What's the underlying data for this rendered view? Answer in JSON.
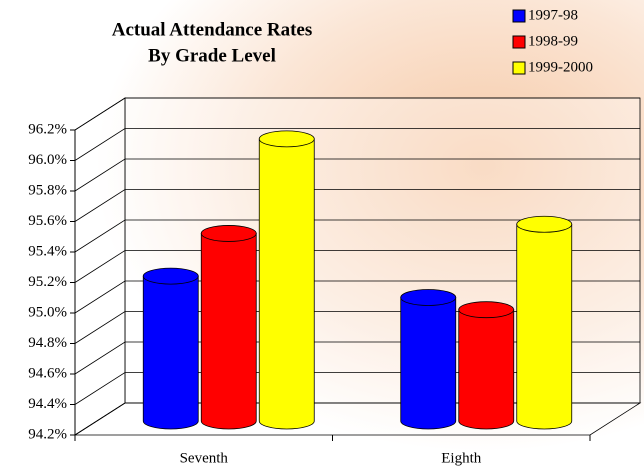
{
  "chart_data": {
    "type": "bar3d",
    "title": [
      "Actual Attendance Rates",
      "By Grade Level"
    ],
    "categories": [
      "Seventh",
      "Eighth"
    ],
    "series": [
      {
        "name": "1997-98",
        "color": "#0000ff",
        "values": [
          95.15,
          95.01
        ]
      },
      {
        "name": "1998-99",
        "color": "#ff0000",
        "values": [
          95.43,
          94.93
        ]
      },
      {
        "name": "1999-2000",
        "color": "#ffff00",
        "values": [
          96.05,
          95.49
        ]
      }
    ],
    "ylim": [
      94.2,
      96.2
    ],
    "yticks": [
      {
        "value": 94.2,
        "label": "94.2%"
      },
      {
        "value": 94.4,
        "label": "94.4%"
      },
      {
        "value": 94.6,
        "label": "94.6%"
      },
      {
        "value": 94.8,
        "label": "94.8%"
      },
      {
        "value": 95.0,
        "label": "95.0%"
      },
      {
        "value": 95.2,
        "label": "95.2%"
      },
      {
        "value": 95.4,
        "label": "95.4%"
      },
      {
        "value": 95.6,
        "label": "95.6%"
      },
      {
        "value": 95.8,
        "label": "95.8%"
      },
      {
        "value": 96.0,
        "label": "96.0%"
      },
      {
        "value": 96.2,
        "label": "96.2%"
      }
    ],
    "grid": true,
    "legend": "top-right"
  }
}
